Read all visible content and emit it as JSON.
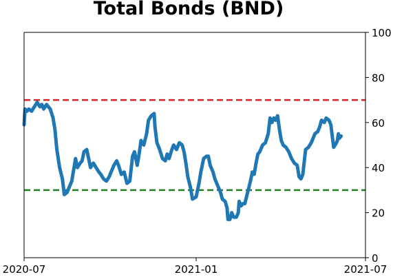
{
  "chart_data": {
    "type": "line",
    "title": "Total Bonds (BND)",
    "xlabel": "",
    "ylabel": "",
    "x_range": [
      "2020-07-01",
      "2021-07-01"
    ],
    "x_ticks": [
      {
        "date": "2020-07-01",
        "label": "2020-07"
      },
      {
        "date": "2021-01-01",
        "label": "2021-01"
      },
      {
        "date": "2021-07-01",
        "label": "2021-07"
      }
    ],
    "ylim": [
      0,
      100
    ],
    "y_ticks": [
      0,
      20,
      40,
      60,
      80,
      100
    ],
    "y_axis_side": "right",
    "grid": false,
    "reference_lines": [
      {
        "y": 70,
        "color": "#e02020",
        "style": "dashed"
      },
      {
        "y": 30,
        "color": "#208020",
        "style": "dashed"
      }
    ],
    "series": [
      {
        "color": "#1f77b4",
        "points": [
          [
            "2020-07-01",
            59
          ],
          [
            "2020-07-02",
            66
          ],
          [
            "2020-07-04",
            65
          ],
          [
            "2020-07-06",
            66
          ],
          [
            "2020-07-09",
            65
          ],
          [
            "2020-07-12",
            67
          ],
          [
            "2020-07-15",
            69
          ],
          [
            "2020-07-18",
            67
          ],
          [
            "2020-07-20",
            68
          ],
          [
            "2020-07-22",
            66
          ],
          [
            "2020-07-25",
            68
          ],
          [
            "2020-07-27",
            67
          ],
          [
            "2020-07-29",
            66
          ],
          [
            "2020-08-01",
            62
          ],
          [
            "2020-08-03",
            57
          ],
          [
            "2020-08-05",
            48
          ],
          [
            "2020-08-08",
            40
          ],
          [
            "2020-08-11",
            35
          ],
          [
            "2020-08-13",
            28
          ],
          [
            "2020-08-16",
            29
          ],
          [
            "2020-08-18",
            31
          ],
          [
            "2020-08-21",
            34
          ],
          [
            "2020-08-23",
            39
          ],
          [
            "2020-08-25",
            44
          ],
          [
            "2020-08-27",
            40
          ],
          [
            "2020-08-30",
            42
          ],
          [
            "2020-09-01",
            43
          ],
          [
            "2020-09-03",
            47
          ],
          [
            "2020-09-06",
            48
          ],
          [
            "2020-09-08",
            44
          ],
          [
            "2020-09-10",
            40
          ],
          [
            "2020-09-13",
            42
          ],
          [
            "2020-09-16",
            40
          ],
          [
            "2020-09-19",
            38
          ],
          [
            "2020-09-21",
            37
          ],
          [
            "2020-09-24",
            35
          ],
          [
            "2020-09-27",
            34
          ],
          [
            "2020-09-30",
            36
          ],
          [
            "2020-10-02",
            38
          ],
          [
            "2020-10-05",
            41
          ],
          [
            "2020-10-08",
            43
          ],
          [
            "2020-10-10",
            41
          ],
          [
            "2020-10-13",
            37
          ],
          [
            "2020-10-16",
            38
          ],
          [
            "2020-10-19",
            33
          ],
          [
            "2020-10-22",
            34
          ],
          [
            "2020-10-25",
            45
          ],
          [
            "2020-10-27",
            47
          ],
          [
            "2020-10-30",
            41
          ],
          [
            "2020-11-01",
            46
          ],
          [
            "2020-11-03",
            52
          ],
          [
            "2020-11-06",
            50
          ],
          [
            "2020-11-09",
            55
          ],
          [
            "2020-11-11",
            61
          ],
          [
            "2020-11-14",
            63
          ],
          [
            "2020-11-17",
            64
          ],
          [
            "2020-11-18",
            58
          ],
          [
            "2020-11-20",
            51
          ],
          [
            "2020-11-23",
            48
          ],
          [
            "2020-11-26",
            44
          ],
          [
            "2020-11-29",
            43
          ],
          [
            "2020-12-01",
            46
          ],
          [
            "2020-12-03",
            44
          ],
          [
            "2020-12-06",
            48
          ],
          [
            "2020-12-08",
            50
          ],
          [
            "2020-12-11",
            48
          ],
          [
            "2020-12-14",
            51
          ],
          [
            "2020-12-17",
            50
          ],
          [
            "2020-12-19",
            47
          ],
          [
            "2020-12-21",
            42
          ],
          [
            "2020-12-23",
            36
          ],
          [
            "2020-12-26",
            31
          ],
          [
            "2020-12-28",
            26
          ],
          [
            "2021-01-01",
            27
          ],
          [
            "2021-01-04",
            33
          ],
          [
            "2021-01-06",
            38
          ],
          [
            "2021-01-09",
            44
          ],
          [
            "2021-01-12",
            45
          ],
          [
            "2021-01-14",
            45
          ],
          [
            "2021-01-16",
            41
          ],
          [
            "2021-01-19",
            38
          ],
          [
            "2021-01-21",
            35
          ],
          [
            "2021-01-24",
            32
          ],
          [
            "2021-01-27",
            29
          ],
          [
            "2021-01-29",
            26
          ],
          [
            "2021-02-01",
            25
          ],
          [
            "2021-02-03",
            22
          ],
          [
            "2021-02-04",
            17
          ],
          [
            "2021-02-06",
            17
          ],
          [
            "2021-02-08",
            20
          ],
          [
            "2021-02-10",
            18
          ],
          [
            "2021-02-13",
            18
          ],
          [
            "2021-02-15",
            20
          ],
          [
            "2021-02-16",
            25
          ],
          [
            "2021-02-18",
            23
          ],
          [
            "2021-02-20",
            24
          ],
          [
            "2021-02-22",
            24
          ],
          [
            "2021-02-25",
            29
          ],
          [
            "2021-02-28",
            34
          ],
          [
            "2021-03-02",
            38
          ],
          [
            "2021-03-04",
            37
          ],
          [
            "2021-03-06",
            42
          ],
          [
            "2021-03-08",
            46
          ],
          [
            "2021-03-10",
            47
          ],
          [
            "2021-03-13",
            50
          ],
          [
            "2021-03-16",
            51
          ],
          [
            "2021-03-19",
            55
          ],
          [
            "2021-03-21",
            62
          ],
          [
            "2021-03-23",
            60
          ],
          [
            "2021-03-25",
            62
          ],
          [
            "2021-03-27",
            61
          ],
          [
            "2021-03-29",
            63
          ],
          [
            "2021-03-31",
            57
          ],
          [
            "2021-04-02",
            52
          ],
          [
            "2021-04-04",
            50
          ],
          [
            "2021-04-07",
            49
          ],
          [
            "2021-04-10",
            47
          ],
          [
            "2021-04-13",
            44
          ],
          [
            "2021-04-16",
            42
          ],
          [
            "2021-04-19",
            41
          ],
          [
            "2021-04-21",
            36
          ],
          [
            "2021-04-23",
            35
          ],
          [
            "2021-04-25",
            37
          ],
          [
            "2021-04-28",
            48
          ],
          [
            "2021-05-01",
            49
          ],
          [
            "2021-05-04",
            51
          ],
          [
            "2021-05-06",
            53
          ],
          [
            "2021-05-08",
            55
          ],
          [
            "2021-05-11",
            56
          ],
          [
            "2021-05-13",
            58
          ],
          [
            "2021-05-15",
            61
          ],
          [
            "2021-05-18",
            60
          ],
          [
            "2021-05-20",
            62
          ],
          [
            "2021-05-23",
            61
          ],
          [
            "2021-05-25",
            59
          ],
          [
            "2021-05-28",
            49
          ],
          [
            "2021-05-31",
            51
          ],
          [
            "2021-06-01",
            52
          ],
          [
            "2021-06-02",
            55
          ],
          [
            "2021-06-03",
            53
          ],
          [
            "2021-06-05",
            54
          ]
        ]
      }
    ]
  }
}
